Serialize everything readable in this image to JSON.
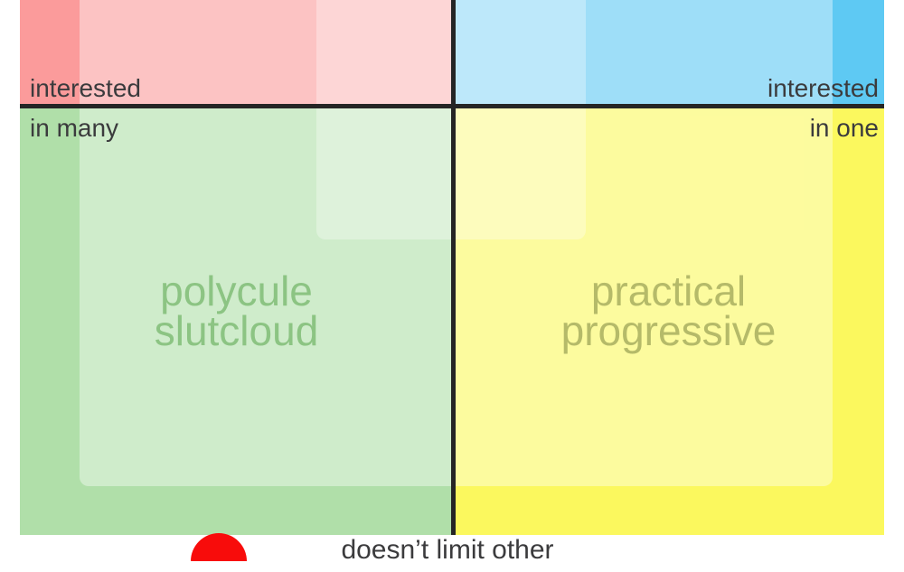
{
  "chart_data": {
    "type": "scatter",
    "subtype": "political-compass-quadrant-meme",
    "title": "",
    "axes": {
      "x_left_label": "interested in many",
      "x_right_label": "interested in one",
      "y_bottom_label": "doesn’t limit other",
      "grid": false,
      "note_visible_region": "image is cropped: only area around horizontal axis and lower quadrants is visible"
    },
    "quadrants": [
      {
        "position": "top-left",
        "color": "#fb9b9b",
        "label": ""
      },
      {
        "position": "top-right",
        "color": "#5ec9f3",
        "label": ""
      },
      {
        "position": "bottom-left",
        "color": "#b0dfa9",
        "label": "polycule slutcloud"
      },
      {
        "position": "bottom-right",
        "color": "#fbf85e",
        "label": "practical progressive"
      }
    ],
    "points": [
      {
        "name": "red-marker",
        "x_frac_of_visible_width": 0.23,
        "y_frac_of_visible_height": 1.0,
        "color": "#f80c0b",
        "shape": "half-disc on bottom edge"
      }
    ],
    "legend": null
  },
  "labels": {
    "axis_left_line1": "interested",
    "axis_left_line2": "in many",
    "axis_right_line1": "interested",
    "axis_right_line2": "in one",
    "axis_bottom": "doesn’t limit other",
    "quad_bl_line1": "polycule",
    "quad_bl_line2": "slutcloud",
    "quad_br_line1": "practical",
    "quad_br_line2": "progressive"
  },
  "colors": {
    "background": "#ffffff",
    "axis_line": "#252525",
    "axis_label_text": "#3b3b3d",
    "quad_top_left": "#fb9b9b",
    "quad_top_right": "#5ec9f3",
    "quad_bottom_left": "#b0dfa9",
    "quad_bottom_right": "#fbf85e",
    "quad_label_bottom_left": "#8cc483",
    "quad_label_bottom_right": "#b5ba69",
    "overlay_outer": "rgba(255,255,255,0.40)",
    "overlay_inner": "rgba(255,255,255,0.32)",
    "marker_red": "#f80c0b"
  }
}
